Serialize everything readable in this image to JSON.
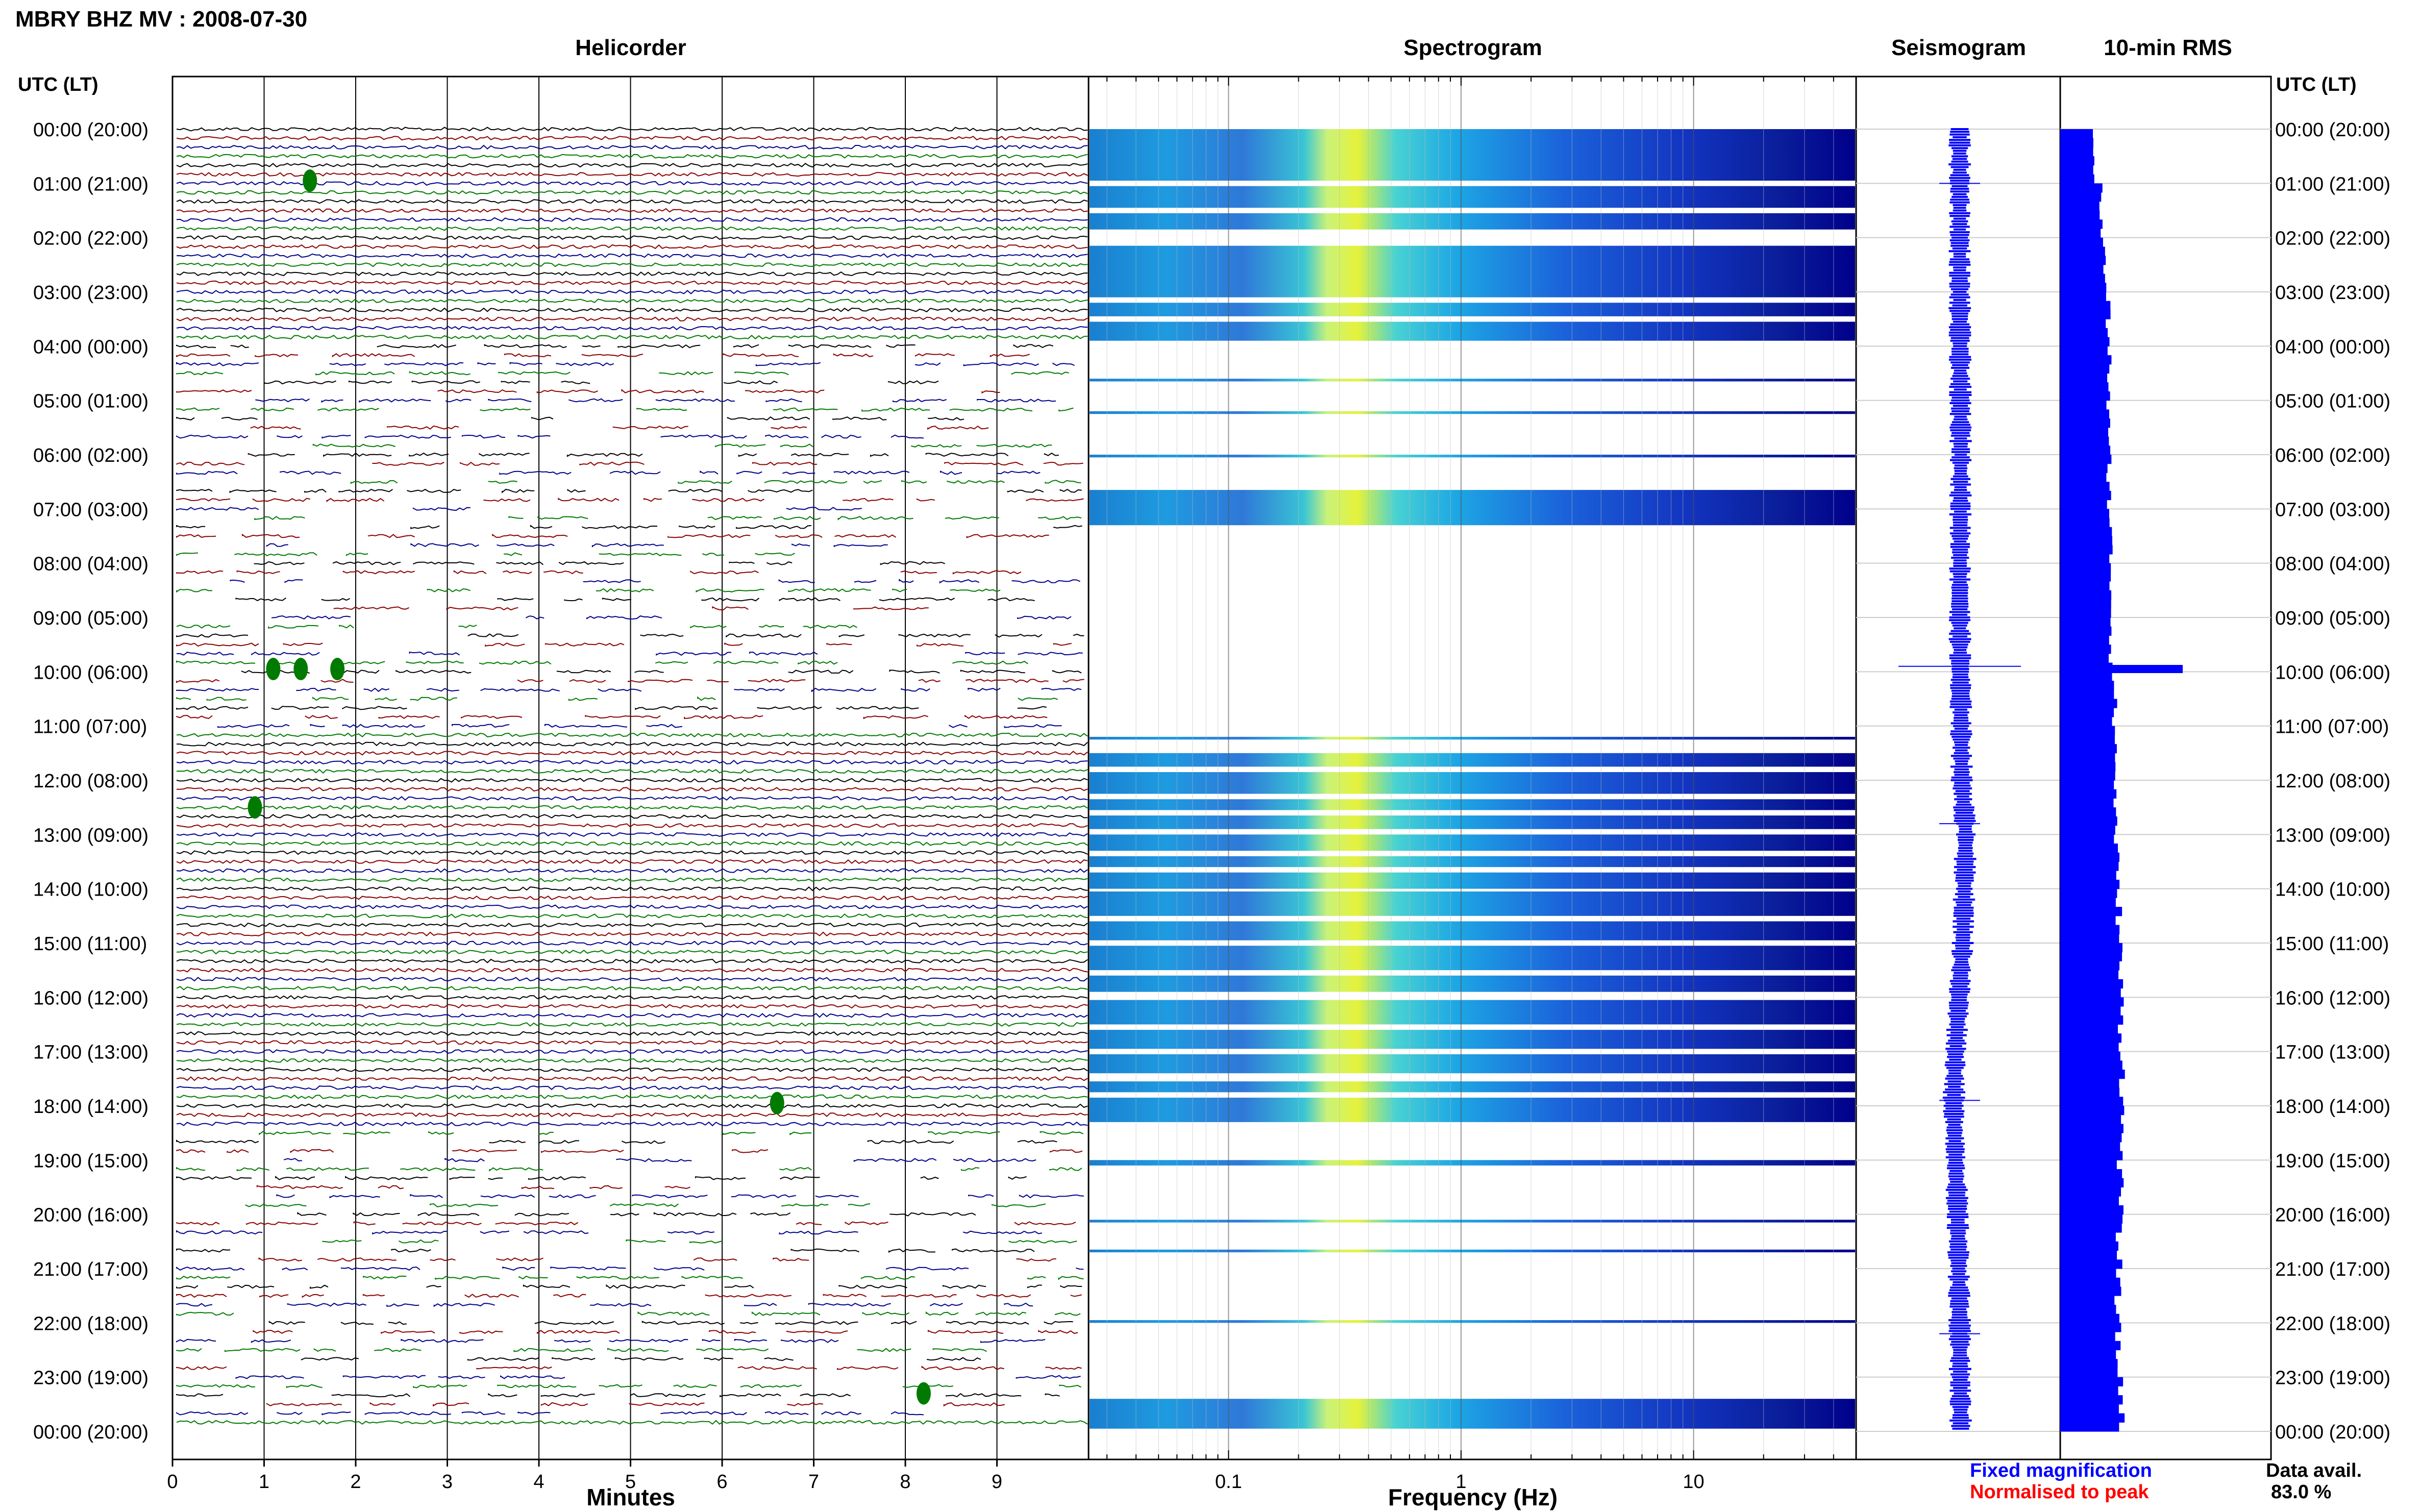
{
  "header": {
    "title": "MBRY BHZ MV : 2008-07-30",
    "helicorder_title": "Helicorder",
    "spectrogram_title": "Spectrogram",
    "seismogram_title": "Seismogram",
    "rms_title": "10-min RMS",
    "time_axis_label": "UTC (LT)"
  },
  "footer": {
    "minutes_label": "Minutes",
    "frequency_label": "Frequency (Hz)",
    "legend_fixed": "Fixed magnification",
    "legend_normalised": "Normalised to peak",
    "data_avail_label": "Data avail.",
    "data_avail_value": "83.0 %"
  },
  "colors": {
    "trace_palette": [
      "#000000",
      "#8b0000",
      "#00008b",
      "#007a00"
    ],
    "seismogram": "#0000ff",
    "rms": "#0000ff",
    "legend_fixed": "#0000ff",
    "legend_normalised": "#ff0000",
    "spectrogram_low": "#00008b",
    "spectrogram_high": "#ffff00"
  },
  "chart_data": [
    {
      "type": "line",
      "name": "helicorder",
      "xlabel": "Minutes",
      "xlim": [
        0,
        10
      ],
      "xticks": [
        "0",
        "1",
        "2",
        "3",
        "4",
        "5",
        "6",
        "7",
        "8",
        "9"
      ],
      "ylim": [
        0,
        24
      ],
      "rows_per_hour": 6,
      "row_minutes": 10,
      "time_labels": [
        "00:00 (20:00)",
        "01:00 (21:00)",
        "02:00 (22:00)",
        "03:00 (23:00)",
        "04:00 (00:00)",
        "05:00 (01:00)",
        "06:00 (02:00)",
        "07:00 (03:00)",
        "08:00 (04:00)",
        "09:00 (05:00)",
        "10:00 (06:00)",
        "11:00 (07:00)",
        "12:00 (08:00)",
        "13:00 (09:00)",
        "14:00 (10:00)",
        "15:00 (11:00)",
        "16:00 (12:00)",
        "17:00 (13:00)",
        "18:00 (14:00)",
        "19:00 (15:00)",
        "20:00 (16:00)",
        "21:00 (17:00)",
        "22:00 (18:00)",
        "23:00 (19:00)",
        "00:00 (20:00)"
      ],
      "gappy_hours": [
        [
          4,
          11
        ],
        [
          18.5,
          23.8
        ]
      ],
      "events": [
        {
          "hour": 0.95,
          "minute": 1.5
        },
        {
          "hour": 9.95,
          "minute": 1.1
        },
        {
          "hour": 9.95,
          "minute": 1.4
        },
        {
          "hour": 9.95,
          "minute": 1.8
        },
        {
          "hour": 12.5,
          "minute": 0.9
        },
        {
          "hour": 17.95,
          "minute": 6.6
        },
        {
          "hour": 23.3,
          "minute": 8.2
        }
      ]
    },
    {
      "type": "heatmap",
      "name": "spectrogram",
      "xlabel": "Frequency (Hz)",
      "xscale": "log",
      "xlim": [
        0.025,
        50
      ],
      "xticks": [
        "0.1",
        "1",
        "10"
      ],
      "ylim": [
        0,
        24
      ],
      "peak_frequency_hz": 0.3,
      "data_bands_hours": [
        [
          0,
          0.95
        ],
        [
          1.05,
          1.45
        ],
        [
          1.55,
          1.85
        ],
        [
          2.15,
          3.1
        ],
        [
          3.2,
          3.45
        ],
        [
          3.55,
          3.9
        ],
        [
          4.6,
          4.65
        ],
        [
          5.2,
          5.25
        ],
        [
          6.0,
          6.05
        ],
        [
          6.65,
          7.3
        ],
        [
          11.2,
          11.25
        ],
        [
          11.5,
          11.75
        ],
        [
          11.85,
          12.25
        ],
        [
          12.35,
          12.55
        ],
        [
          12.65,
          12.9
        ],
        [
          13.0,
          13.3
        ],
        [
          13.4,
          13.6
        ],
        [
          13.7,
          14.0
        ],
        [
          14.05,
          14.5
        ],
        [
          14.6,
          14.95
        ],
        [
          15.05,
          15.5
        ],
        [
          15.6,
          15.9
        ],
        [
          16.05,
          16.5
        ],
        [
          16.6,
          16.95
        ],
        [
          17.05,
          17.4
        ],
        [
          17.55,
          17.75
        ],
        [
          17.85,
          18.3
        ],
        [
          19.0,
          19.1
        ],
        [
          20.1,
          20.15
        ],
        [
          20.65,
          20.7
        ],
        [
          21.95,
          22.0
        ],
        [
          23.4,
          23.95
        ]
      ]
    },
    {
      "type": "line",
      "name": "seismogram",
      "ylim": [
        0,
        24
      ],
      "trend_x": [
        0,
        3,
        6,
        9,
        12,
        13,
        15,
        17,
        18,
        20,
        22,
        24
      ],
      "trend_y": [
        0.0,
        0.0,
        0.05,
        0.0,
        0.1,
        0.3,
        0.15,
        -0.2,
        -0.3,
        -0.1,
        0.0,
        0.05
      ],
      "spike_hours": [
        1.0,
        9.9,
        12.8,
        17.9,
        22.2
      ]
    },
    {
      "type": "bar",
      "name": "rms_10min",
      "orientation": "horizontal",
      "ylim": [
        0,
        24
      ],
      "hours": [
        0,
        1,
        2,
        3,
        4,
        5,
        6,
        7,
        8,
        9,
        10,
        11,
        12,
        13,
        14,
        15,
        16,
        17,
        18,
        19,
        20,
        21,
        22,
        23
      ],
      "values": [
        0.28,
        0.33,
        0.36,
        0.39,
        0.4,
        0.39,
        0.4,
        0.41,
        0.42,
        0.42,
        0.44,
        0.45,
        0.45,
        0.46,
        0.48,
        0.49,
        0.5,
        0.51,
        0.5,
        0.49,
        0.48,
        0.47,
        0.47,
        0.5
      ],
      "peak": {
        "hour": 9.95,
        "value": 1.0
      }
    }
  ]
}
